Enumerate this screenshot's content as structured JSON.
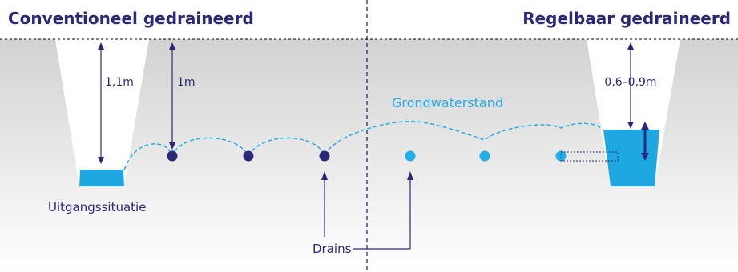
{
  "titles": {
    "left": "Conventioneel gedraineerd",
    "right": "Regelbaar gedraineerd"
  },
  "labels": {
    "ditch_depth_left": "1,1m",
    "drain_depth_left": "1m",
    "groundwater": "Grondwaterstand",
    "initial_situation": "Uitgangssituatie",
    "drains": "Drains",
    "ditch_depth_right": "0,6–0,9m"
  },
  "colors": {
    "dark_blue": "#2b2878",
    "light_blue": "#22aee6",
    "water": "#1ea7e0",
    "soil_top": "#d2d2d2",
    "soil_bottom": "#ffffff"
  }
}
